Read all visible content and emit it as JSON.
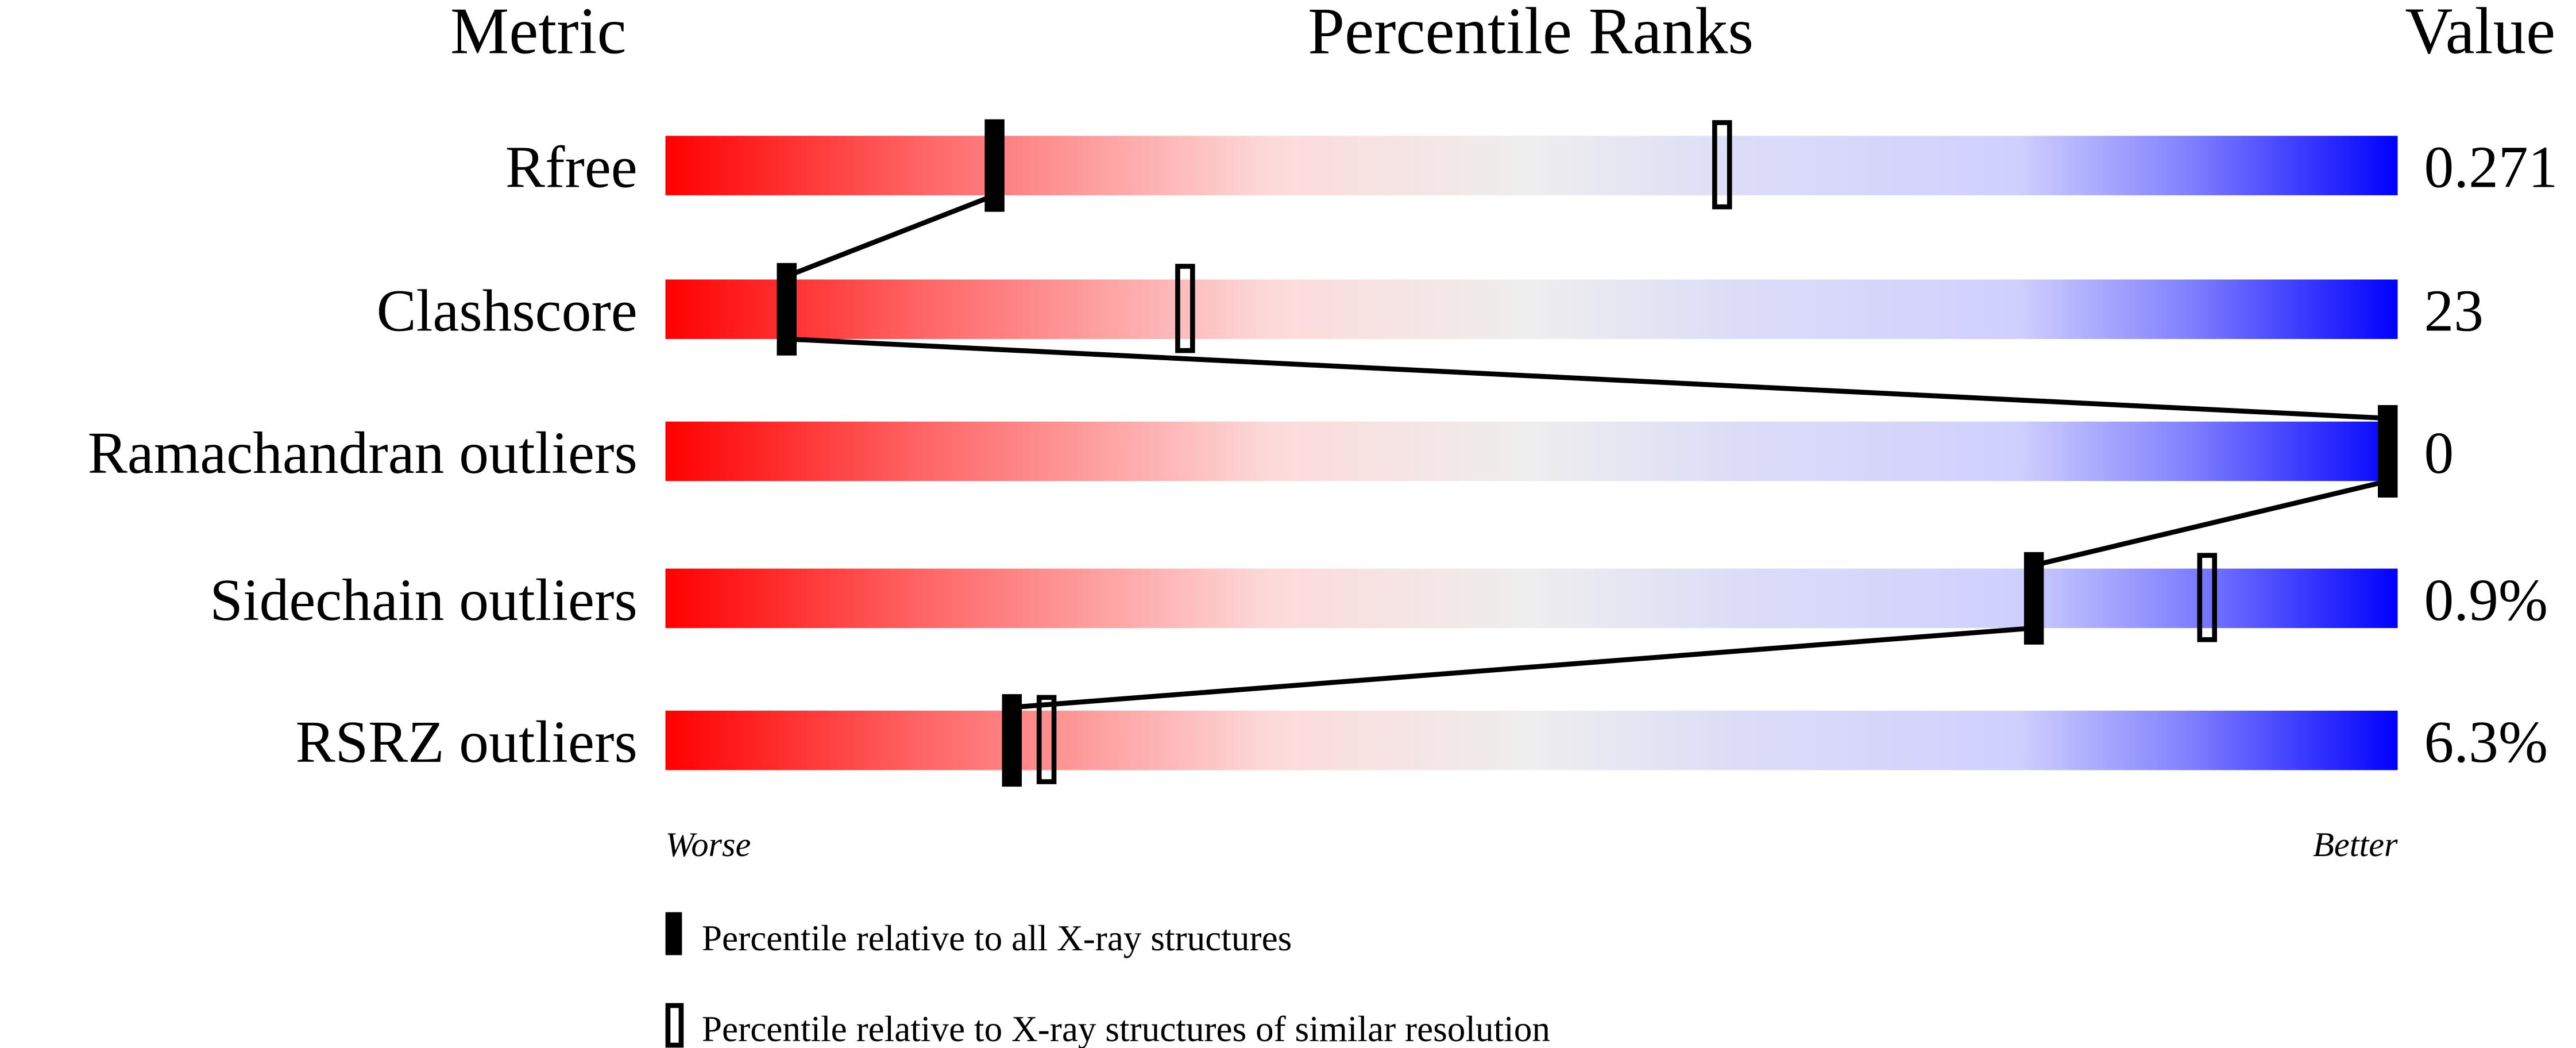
{
  "chart_data": {
    "type": "percentile-slider",
    "headers": {
      "metric": "Metric",
      "ranks": "Percentile Ranks",
      "value": "Value"
    },
    "axis_ends": {
      "left": "Worse",
      "right": "Better"
    },
    "xlim": [
      0,
      100
    ],
    "metrics": [
      {
        "name": "Rfree",
        "value": "0.271",
        "percentile_all": 19,
        "percentile_similar": 61
      },
      {
        "name": "Clashscore",
        "value": "23",
        "percentile_all": 7,
        "percentile_similar": 30
      },
      {
        "name": "Ramachandran outliers",
        "value": "0",
        "percentile_all": 100,
        "percentile_similar": null
      },
      {
        "name": "Sidechain outliers",
        "value": "0.9%",
        "percentile_all": 79,
        "percentile_similar": 89
      },
      {
        "name": "RSRZ outliers",
        "value": "6.3%",
        "percentile_all": 20,
        "percentile_similar": 22
      }
    ],
    "legend": [
      {
        "marker": "filled",
        "label": "Percentile relative to all X-ray structures"
      },
      {
        "marker": "hollow",
        "label": "Percentile relative to X-ray structures of similar resolution"
      }
    ],
    "colors": {
      "worse": "#ff0000",
      "middle": "#eeeeee",
      "better": "#0000ff",
      "marker": "#000000"
    }
  }
}
